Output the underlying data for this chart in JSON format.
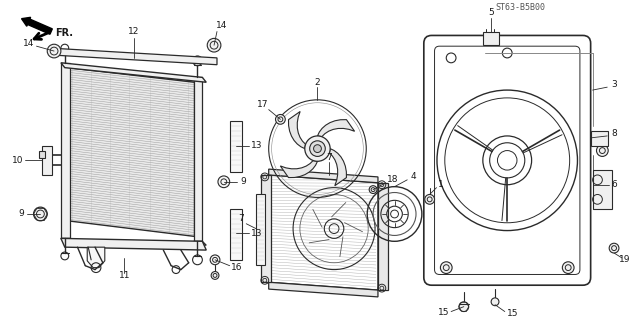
{
  "background_color": "#ffffff",
  "diagram_code": "ST63-B5B00",
  "line_color": "#2a2a2a",
  "gray_color": "#888888",
  "light_gray": "#bbbbbb",
  "font_size": 6.5,
  "label_color": "#1a1a1a"
}
